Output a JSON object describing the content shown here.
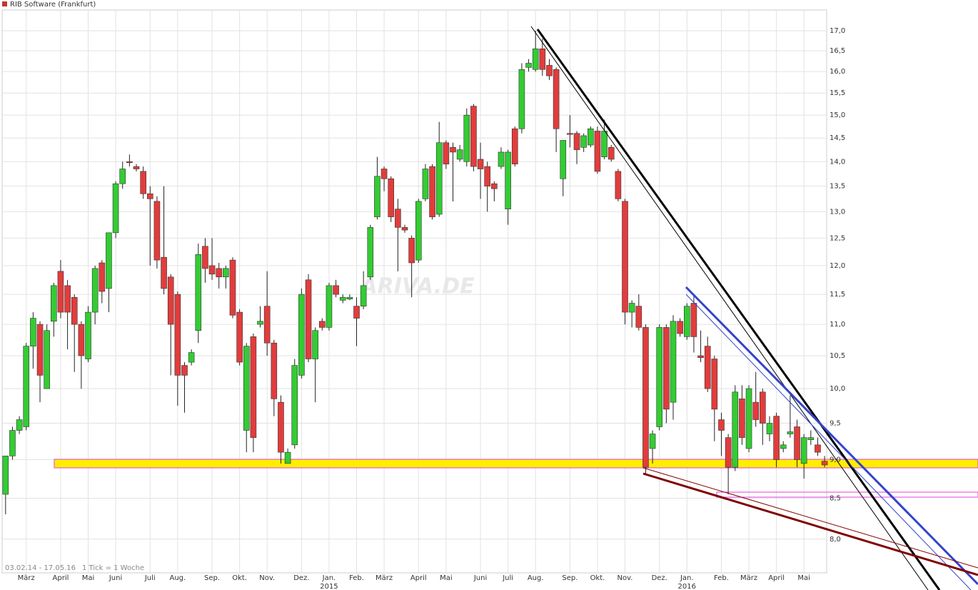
{
  "chart_data": {
    "type": "candlestick",
    "title": "RIB Software (Frankfurt)",
    "subtitle": "03.02.14 - 17.05.16",
    "note": "1 Tick = 1 Woche",
    "watermark": "ARIVA.DE",
    "up_color": "#33cc33",
    "down_color": "#e23c3c",
    "log_scale": true,
    "grid": true,
    "ylim": [
      7.61,
      17.53
    ],
    "yticks": [
      {
        "value": 8,
        "label": "8,0"
      },
      {
        "value": 8.5,
        "label": "8,5"
      },
      {
        "value": 9,
        "label": "9,0"
      },
      {
        "value": 9.5,
        "label": "9,5"
      },
      {
        "value": 10,
        "label": "10,0"
      },
      {
        "value": 10.5,
        "label": "10,5"
      },
      {
        "value": 11,
        "label": "11,0"
      },
      {
        "value": 11.5,
        "label": "11,5"
      },
      {
        "value": 12,
        "label": "12,0"
      },
      {
        "value": 12.5,
        "label": "12,5"
      },
      {
        "value": 13,
        "label": "13,0"
      },
      {
        "value": 13.5,
        "label": "13,5"
      },
      {
        "value": 14,
        "label": "14,0"
      },
      {
        "value": 14.5,
        "label": "14,5"
      },
      {
        "value": 15,
        "label": "15,0"
      },
      {
        "value": 15.5,
        "label": "15,5"
      },
      {
        "value": 16,
        "label": "16,0"
      },
      {
        "value": 16.5,
        "label": "16,5"
      },
      {
        "value": 17,
        "label": "17,0"
      }
    ],
    "xlim": [
      -0.5,
      119.3
    ],
    "xticks": [
      {
        "value": 3,
        "label": "März"
      },
      {
        "value": 8,
        "label": "April"
      },
      {
        "value": 12,
        "label": "Mai"
      },
      {
        "value": 16,
        "label": "Juni"
      },
      {
        "value": 21,
        "label": "Juli"
      },
      {
        "value": 25,
        "label": "Aug."
      },
      {
        "value": 30,
        "label": "Sep."
      },
      {
        "value": 34,
        "label": "Okt."
      },
      {
        "value": 38,
        "label": "Nov."
      },
      {
        "value": 43,
        "label": "Dez."
      },
      {
        "value": 47,
        "label": "Jan."
      },
      {
        "value": 51,
        "label": "Feb."
      },
      {
        "value": 55,
        "label": "März"
      },
      {
        "value": 60,
        "label": "April"
      },
      {
        "value": 64,
        "label": "Mai"
      },
      {
        "value": 69,
        "label": "Juni"
      },
      {
        "value": 73,
        "label": "Juli"
      },
      {
        "value": 77,
        "label": "Aug."
      },
      {
        "value": 82,
        "label": "Sep."
      },
      {
        "value": 86,
        "label": "Okt."
      },
      {
        "value": 90,
        "label": "Nov."
      },
      {
        "value": 95,
        "label": "Dez."
      },
      {
        "value": 99,
        "label": "Jan."
      },
      {
        "value": 104,
        "label": "Feb."
      },
      {
        "value": 108,
        "label": "März"
      },
      {
        "value": 112,
        "label": "April"
      },
      {
        "value": 116,
        "label": "Mai"
      }
    ],
    "years": [
      {
        "value": 47,
        "label": "2015"
      },
      {
        "value": 99,
        "label": "2016"
      }
    ],
    "open": [
      8.55,
      9.05,
      9.4,
      9.45,
      10.65,
      11.0,
      10.0,
      11.05,
      11.9,
      11.65,
      11.45,
      11.0,
      10.45,
      11.2,
      12.05,
      11.6,
      12.6,
      13.55,
      14.0,
      13.9,
      13.8,
      13.35,
      13.2,
      12.15,
      11.8,
      11.5,
      10.35,
      10.4,
      10.9,
      12.35,
      12.0,
      11.95,
      11.8,
      12.1,
      11.2,
      9.4,
      10.8,
      11.0,
      11.3,
      10.7,
      9.8,
      8.95,
      9.2,
      10.2,
      11.75,
      10.45,
      11.05,
      10.95,
      11.65,
      11.4,
      11.42,
      11.3,
      11.3,
      11.8,
      12.9,
      13.85,
      13.65,
      13.05,
      12.7,
      12.5,
      12.1,
      13.25,
      13.9,
      12.95,
      14.4,
      14.3,
      14.05,
      14.0,
      15.2,
      14.05,
      13.9,
      13.55,
      13.9,
      13.05,
      14.7,
      14.7,
      16.1,
      16.05,
      16.55,
      16.15,
      16.05,
      13.65,
      14.6,
      14.6,
      14.3,
      14.35,
      14.65,
      14.1,
      14.3,
      13.8,
      13.2,
      11.2,
      11.3,
      10.95,
      9.15,
      9.45,
      10.95,
      9.8,
      11.05,
      10.8,
      11.35,
      10.5,
      10.65,
      10.45,
      9.55,
      9.3,
      8.9,
      9.85,
      9.15,
      9.8,
      9.95,
      9.35,
      9.6,
      9.15,
      9.35,
      9.45,
      8.95,
      9.27,
      9.2,
      8.98
    ],
    "high": [
      9.05,
      9.45,
      9.6,
      10.7,
      11.2,
      11.05,
      11.0,
      11.7,
      12.1,
      11.75,
      11.5,
      11.05,
      11.3,
      12.0,
      12.1,
      12.6,
      13.6,
      14.0,
      14.15,
      13.95,
      13.9,
      13.5,
      13.3,
      13.5,
      11.85,
      11.55,
      10.4,
      10.6,
      12.4,
      12.5,
      12.5,
      12.05,
      12.0,
      12.15,
      11.25,
      10.7,
      10.85,
      11.3,
      11.9,
      10.75,
      9.9,
      9.15,
      10.45,
      11.6,
      11.85,
      10.95,
      11.1,
      11.7,
      11.75,
      11.5,
      11.5,
      11.45,
      11.9,
      12.75,
      14.1,
      13.9,
      13.7,
      13.25,
      12.75,
      12.55,
      13.25,
      13.95,
      13.95,
      14.85,
      14.45,
      14.4,
      14.35,
      15.15,
      15.25,
      14.4,
      14.0,
      13.6,
      14.3,
      14.25,
      14.75,
      16.2,
      16.3,
      17.0,
      16.8,
      16.3,
      16.1,
      14.45,
      15.0,
      14.65,
      14.6,
      14.75,
      14.75,
      14.9,
      14.35,
      13.85,
      13.25,
      11.4,
      11.5,
      11.0,
      9.4,
      11.0,
      11.0,
      11.15,
      11.1,
      11.35,
      11.5,
      10.9,
      10.8,
      10.5,
      9.65,
      9.35,
      10.05,
      10.05,
      10.05,
      10.25,
      10.0,
      9.6,
      9.65,
      9.25,
      9.9,
      9.55,
      9.35,
      9.4,
      9.3,
      9.05
    ],
    "low": [
      8.3,
      9.0,
      9.35,
      9.4,
      10.3,
      9.8,
      10.0,
      10.8,
      11.1,
      10.6,
      10.25,
      10.0,
      10.4,
      11.0,
      11.35,
      11.2,
      12.5,
      13.45,
      13.9,
      13.8,
      13.25,
      12.0,
      11.95,
      11.5,
      10.2,
      9.75,
      9.65,
      10.35,
      10.7,
      11.7,
      11.75,
      11.6,
      11.6,
      11.1,
      10.35,
      9.1,
      9.1,
      10.95,
      10.5,
      9.6,
      8.95,
      8.95,
      9.15,
      10.15,
      10.4,
      9.8,
      10.9,
      10.9,
      11.45,
      11.35,
      11.4,
      10.65,
      11.25,
      11.75,
      12.85,
      13.4,
      12.8,
      11.9,
      12.6,
      11.45,
      12.05,
      13.2,
      12.85,
      12.9,
      13.85,
      13.2,
      14.0,
      13.9,
      13.8,
      13.25,
      13.0,
      13.2,
      13.85,
      12.75,
      13.9,
      14.6,
      16.0,
      16.0,
      15.9,
      15.8,
      14.2,
      13.3,
      14.3,
      13.95,
      14.2,
      14.3,
      13.75,
      14.05,
      14.0,
      13.2,
      11.0,
      10.95,
      10.9,
      8.8,
      8.95,
      9.4,
      9.5,
      9.55,
      10.8,
      10.75,
      10.55,
      10.4,
      9.95,
      9.25,
      9.05,
      8.55,
      8.85,
      9.2,
      9.1,
      9.45,
      9.2,
      9.25,
      8.9,
      9.1,
      9.3,
      8.9,
      8.75,
      9.2,
      9.05,
      8.9
    ],
    "close": [
      9.05,
      9.4,
      9.55,
      10.65,
      11.1,
      10.2,
      10.9,
      11.65,
      11.2,
      11.2,
      11.0,
      10.5,
      11.2,
      11.95,
      11.55,
      12.6,
      13.55,
      13.85,
      13.98,
      13.85,
      13.35,
      13.25,
      12.1,
      11.6,
      11.0,
      10.2,
      10.2,
      10.55,
      12.2,
      11.95,
      11.85,
      11.8,
      11.95,
      11.15,
      10.4,
      10.65,
      9.3,
      11.05,
      10.7,
      9.85,
      9.1,
      9.1,
      10.35,
      11.5,
      10.45,
      10.9,
      10.95,
      11.65,
      11.5,
      11.45,
      11.45,
      11.1,
      11.65,
      12.7,
      13.7,
      13.65,
      12.9,
      12.7,
      12.65,
      12.05,
      13.2,
      13.85,
      12.9,
      14.4,
      13.95,
      14.2,
      14.25,
      15.0,
      13.9,
      13.85,
      13.5,
      13.45,
      14.2,
      14.2,
      13.95,
      16.05,
      16.2,
      16.55,
      16.05,
      15.9,
      14.7,
      14.45,
      14.58,
      14.25,
      14.55,
      14.7,
      13.8,
      14.65,
      14.05,
      13.25,
      11.2,
      11.35,
      10.95,
      8.9,
      9.35,
      10.95,
      9.7,
      11.05,
      10.85,
      11.3,
      10.8,
      10.47,
      10.0,
      9.7,
      9.4,
      8.9,
      9.95,
      9.3,
      10.0,
      9.55,
      9.5,
      9.5,
      9.0,
      9.2,
      9.38,
      9.0,
      9.3,
      9.3,
      9.1,
      8.93
    ]
  }
}
